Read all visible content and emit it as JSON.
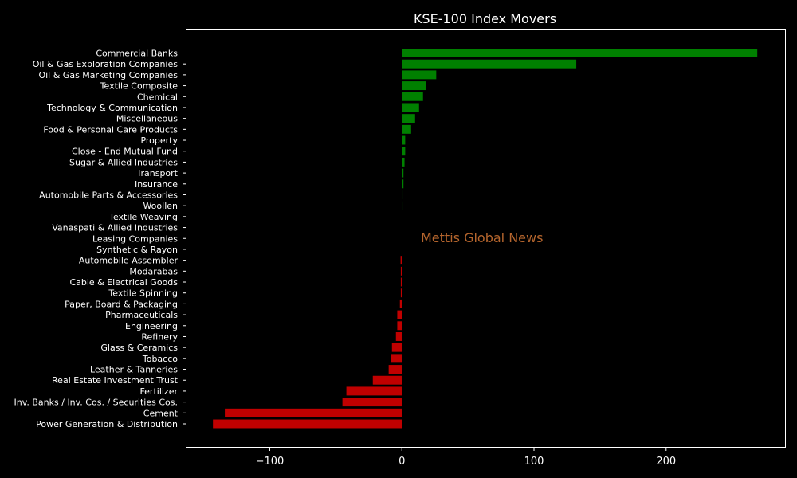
{
  "chart_data": {
    "type": "bar",
    "orientation": "horizontal",
    "title": "KSE-100 Index Movers",
    "xlabel": "",
    "ylabel": "",
    "xlim": [
      -163,
      290
    ],
    "xticks": [
      -100,
      0,
      100,
      200
    ],
    "xtick_labels": [
      "−100",
      "0",
      "100",
      "200"
    ],
    "grid": false,
    "legend": "none",
    "colors": {
      "positive": "#008000",
      "negative": "#c00000",
      "background": "#000000",
      "text": "#ffffff",
      "axes": "#ffffff"
    },
    "categories": [
      "Commercial Banks",
      "Oil & Gas Exploration Companies",
      "Oil & Gas Marketing Companies",
      "Textile Composite",
      "Chemical",
      "Technology & Communication",
      "Miscellaneous",
      "Food & Personal Care Products",
      "Property",
      "Close - End Mutual Fund",
      "Sugar & Allied Industries",
      "Transport",
      "Insurance",
      "Automobile Parts & Accessories",
      "Woollen",
      "Textile Weaving",
      "Vanaspati & Allied Industries",
      "Leasing Companies",
      "Synthetic & Rayon",
      "Automobile Assembler",
      "Modarabas",
      "Cable & Electrical Goods",
      "Textile Spinning",
      "Paper, Board & Packaging",
      "Pharmaceuticals",
      "Engineering",
      "Refinery",
      "Glass & Ceramics",
      "Tobacco",
      "Leather & Tanneries",
      "Real Estate Investment Trust",
      "Fertilizer",
      "Inv. Banks / Inv. Cos. / Securities Cos.",
      "Cement",
      "Power Generation & Distribution"
    ],
    "values": [
      269,
      132,
      26,
      18,
      16,
      13,
      10,
      7,
      2.5,
      2.5,
      2,
      1.2,
      1.2,
      0.5,
      0.5,
      0.4,
      0,
      0,
      0,
      -1,
      -0.8,
      -0.8,
      -0.8,
      -1.5,
      -3.5,
      -3.5,
      -4.5,
      -7.5,
      -8.5,
      -10,
      -22,
      -42,
      -45,
      -134,
      -143
    ]
  },
  "watermark": {
    "text": "Mettis Global News",
    "color": "#b5652d"
  }
}
